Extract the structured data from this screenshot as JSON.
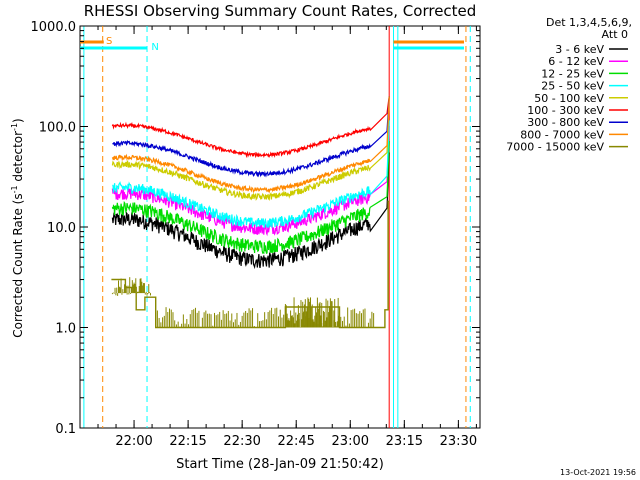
{
  "chart_data": {
    "type": "line",
    "title": "RHESSI Observing Summary Count Rates, Corrected",
    "xlabel": "Start Time (28-Jan-09 21:50:42)",
    "ylabel_main": "Corrected Count Rate (s",
    "ylabel_sup1": "-1",
    "ylabel_mid": " detector",
    "ylabel_sup2": "-1",
    "ylabel_end": ")",
    "yscale": "log",
    "ylim": [
      0.1,
      1000
    ],
    "xlim_minutes": [
      21.75,
      23.6
    ],
    "x_ticks": [
      {
        "label": "22:00",
        "minute": 22.0
      },
      {
        "label": "22:15",
        "minute": 22.25
      },
      {
        "label": "22:30",
        "minute": 22.5
      },
      {
        "label": "22:45",
        "minute": 22.75
      },
      {
        "label": "23:00",
        "minute": 23.0
      },
      {
        "label": "23:15",
        "minute": 23.25
      },
      {
        "label": "23:30",
        "minute": 23.5
      }
    ],
    "y_ticks": [
      {
        "label": "0.1",
        "value": 0.1
      },
      {
        "label": "1.0",
        "value": 1
      },
      {
        "label": "10.0",
        "value": 10
      },
      {
        "label": "100.0",
        "value": 100
      },
      {
        "label": "1000.0",
        "value": 1000
      }
    ],
    "legend": {
      "header1": "Det 1,3,4,5,6,9,",
      "header2": "Att 0",
      "placement": "right"
    },
    "series": [
      {
        "name": "3 - 6 keV",
        "color": "#000000",
        "base": 7.5,
        "amp": 1.6,
        "noise": 0.18
      },
      {
        "name": "6 - 12 keV",
        "color": "#ff00ff",
        "base": 14.5,
        "amp": 1.5,
        "noise": 0.14
      },
      {
        "name": "12 - 25 keV",
        "color": "#00dd00",
        "base": 10.0,
        "amp": 1.55,
        "noise": 0.16
      },
      {
        "name": "25 - 50 keV",
        "color": "#00ffff",
        "base": 16.5,
        "amp": 1.5,
        "noise": 0.12
      },
      {
        "name": "50 - 100 keV",
        "color": "#cccc00",
        "base": 29.0,
        "amp": 1.45,
        "noise": 0.07
      },
      {
        "name": "100 - 300 keV",
        "color": "#ff0000",
        "base": 73.0,
        "amp": 1.4,
        "noise": 0.04
      },
      {
        "name": "300 - 800 keV",
        "color": "#0000cc",
        "base": 48.0,
        "amp": 1.42,
        "noise": 0.05
      },
      {
        "name": "800 - 7000 keV",
        "color": "#ff8800",
        "base": 34.0,
        "amp": 1.45,
        "noise": 0.05
      },
      {
        "name": "7000 - 15000 keV",
        "color": "#888800",
        "base": 1.4,
        "amp": 1.4,
        "noise": 0.0
      }
    ],
    "markers": {
      "s_label": "S",
      "n_label": "N",
      "s_color": "#ff8800",
      "n_color": "#00ffff"
    },
    "footer_date": "13-Oct-2021 19:56"
  }
}
